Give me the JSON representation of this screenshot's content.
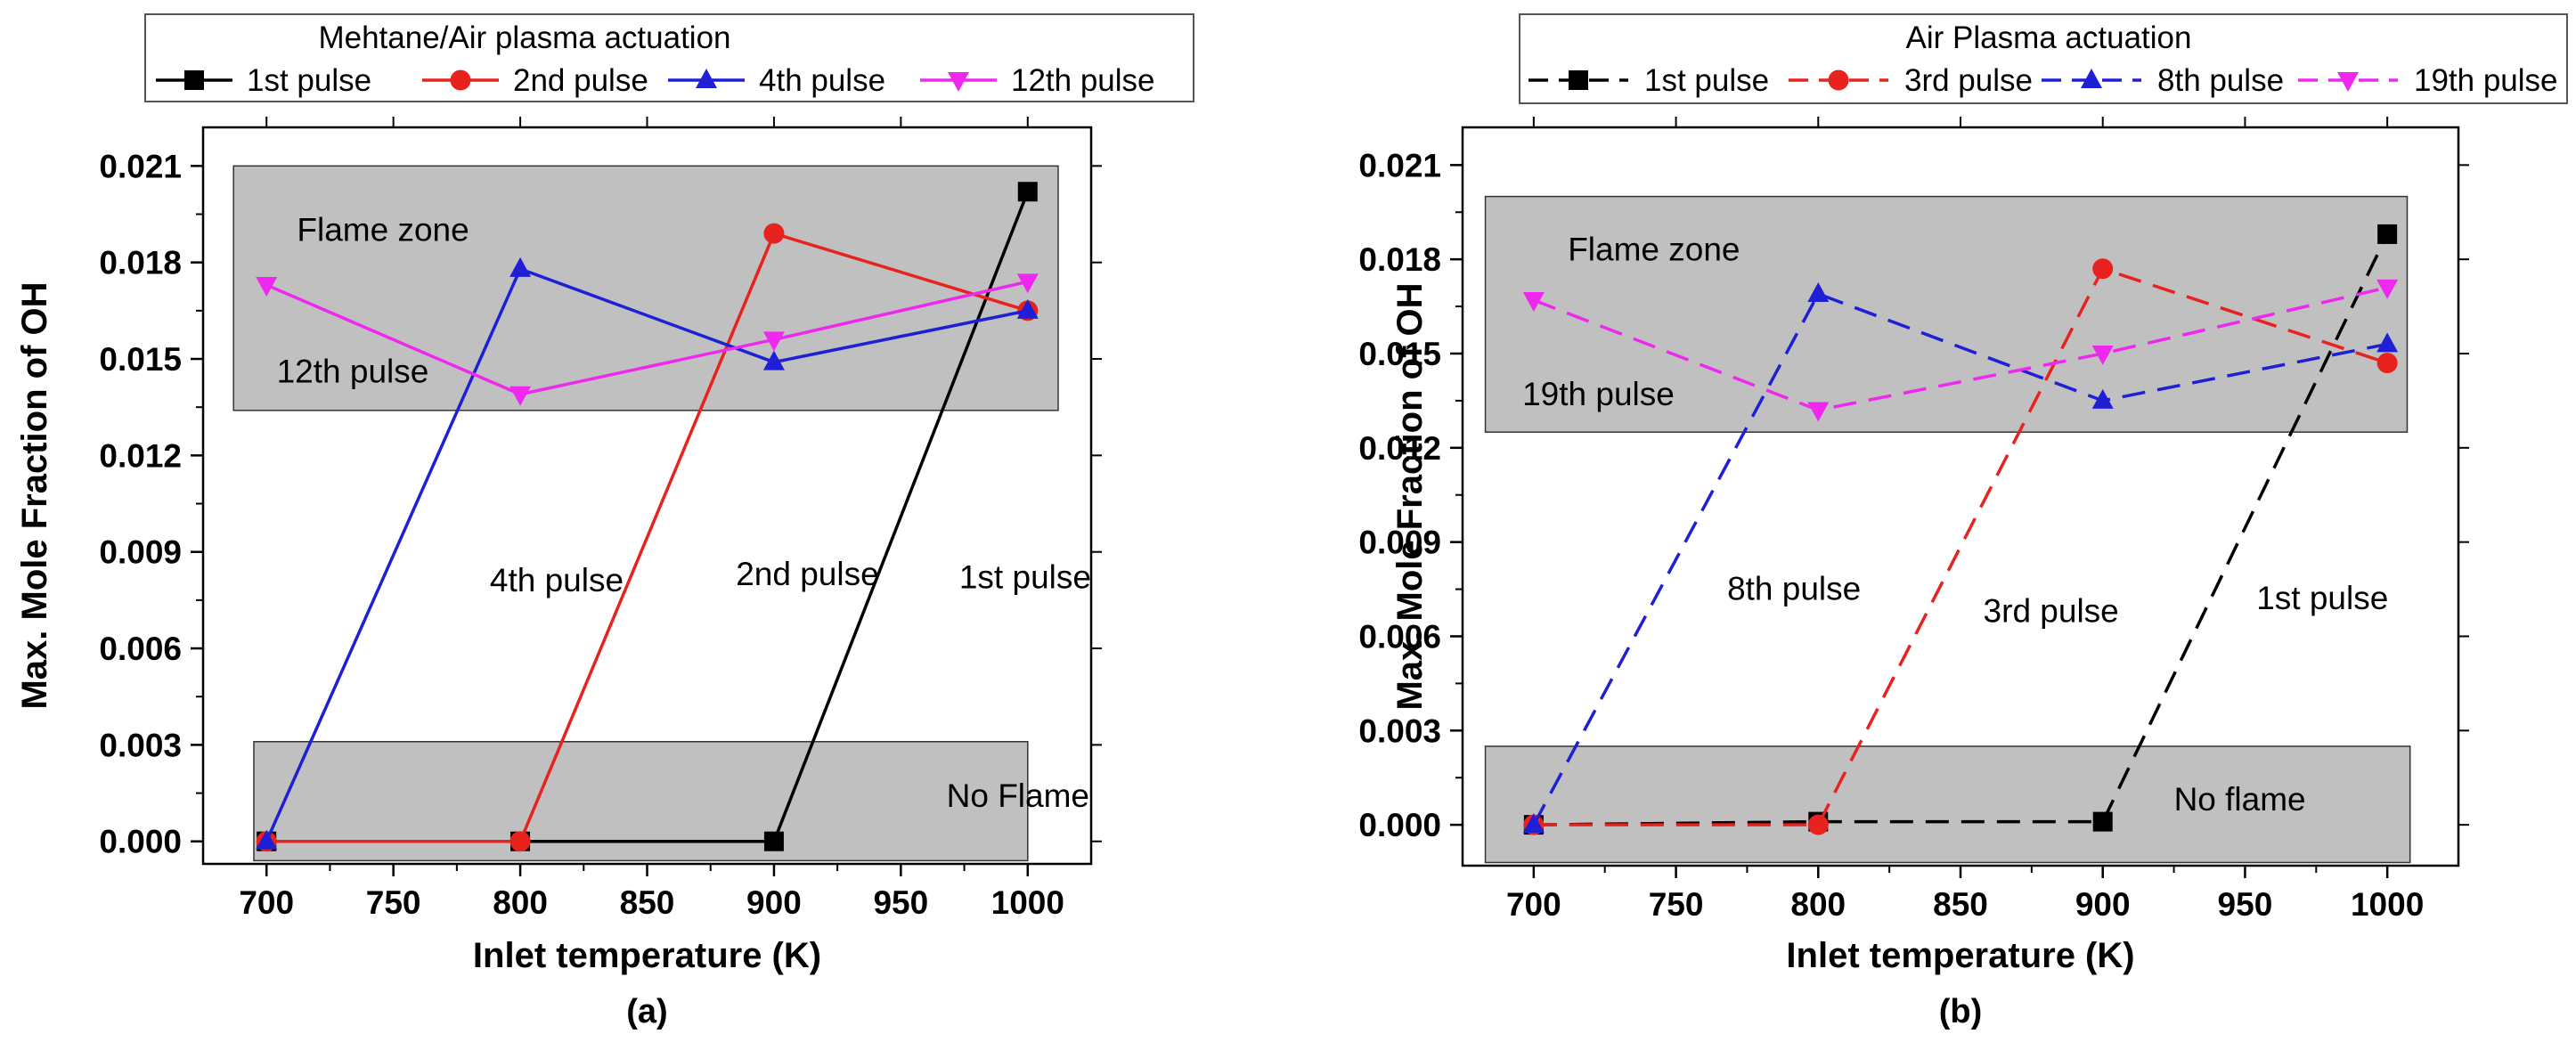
{
  "chart_data": [
    {
      "type": "line",
      "panel_label": "(a)",
      "legend_title": "Mehtane/Air plasma actuation",
      "xlabel": "Inlet temperature (K)",
      "ylabel": "Max. Mole Fraction of OH",
      "xlim": [
        675,
        1025
      ],
      "ylim": [
        -0.0007,
        0.0222
      ],
      "x_ticks": [
        700,
        750,
        800,
        850,
        900,
        950,
        1000
      ],
      "y_ticks": [
        0.0,
        0.003,
        0.006,
        0.009,
        0.012,
        0.015,
        0.018,
        0.021
      ],
      "x_tick_labels": [
        "700",
        "750",
        "800",
        "850",
        "900",
        "950",
        "1000"
      ],
      "y_tick_labels": [
        "0.000",
        "0.003",
        "0.006",
        "0.009",
        "0.012",
        "0.015",
        "0.018",
        "0.021"
      ],
      "line_style": "solid",
      "x": [
        700,
        800,
        900,
        1000
      ],
      "series": [
        {
          "name": "1st pulse",
          "color": "#000000",
          "marker": "square",
          "values": [
            0.0,
            0.0,
            0.0,
            0.0202
          ]
        },
        {
          "name": "2nd pulse",
          "color": "#e8221e",
          "marker": "circle",
          "values": [
            0.0,
            0.0,
            0.0189,
            0.0165
          ]
        },
        {
          "name": "4th pulse",
          "color": "#1f1fd6",
          "marker": "triangle-up",
          "values": [
            0.0,
            0.0178,
            0.0149,
            0.0165
          ]
        },
        {
          "name": "12th pulse",
          "color": "#ee28ee",
          "marker": "triangle-down",
          "values": [
            0.0173,
            0.0139,
            0.0156,
            0.0174
          ]
        }
      ],
      "zones": [
        {
          "label": "Flame zone",
          "x_range": [
            687,
            1012
          ],
          "y_range": [
            0.0134,
            0.021
          ],
          "label_at": [
            712,
            0.019
          ]
        },
        {
          "label": "No Flame",
          "x_range": [
            695,
            1000
          ],
          "y_range": [
            -0.0006,
            0.0031
          ],
          "label_at": [
            968,
            0.0014
          ]
        }
      ],
      "annotations": [
        {
          "text": "12th pulse",
          "at": [
            704,
            0.0146
          ]
        },
        {
          "text": "4th pulse",
          "at": [
            788,
            0.0081
          ]
        },
        {
          "text": "2nd pulse",
          "at": [
            885,
            0.0083
          ]
        },
        {
          "text": "1st pulse",
          "at": [
            973,
            0.0082
          ]
        }
      ]
    },
    {
      "type": "line",
      "panel_label": "(b)",
      "legend_title": "Air Plasma actuation",
      "xlabel": "Inlet temperature (K)",
      "ylabel": "Max. Mole Fraction of OH",
      "xlim": [
        675,
        1025
      ],
      "ylim": [
        -0.0013,
        0.0222
      ],
      "x_ticks": [
        700,
        750,
        800,
        850,
        900,
        950,
        1000
      ],
      "y_ticks": [
        0.0,
        0.003,
        0.006,
        0.009,
        0.012,
        0.015,
        0.018,
        0.021
      ],
      "x_tick_labels": [
        "700",
        "750",
        "800",
        "850",
        "900",
        "950",
        "1000"
      ],
      "y_tick_labels": [
        "0.000",
        "0.003",
        "0.006",
        "0.009",
        "0.012",
        "0.015",
        "0.018",
        "0.021"
      ],
      "line_style": "dashed",
      "x": [
        700,
        800,
        900,
        1000
      ],
      "series": [
        {
          "name": "1st pulse",
          "color": "#000000",
          "marker": "square",
          "values": [
            0.0,
            0.0001,
            0.0001,
            0.0188
          ]
        },
        {
          "name": "3rd pulse",
          "color": "#e8221e",
          "marker": "circle",
          "values": [
            0.0,
            0.0,
            0.0177,
            0.0147
          ]
        },
        {
          "name": "8th pulse",
          "color": "#1f1fd6",
          "marker": "triangle-up",
          "values": [
            0.0,
            0.0169,
            0.0135,
            0.0153
          ]
        },
        {
          "name": "19th pulse",
          "color": "#ee28ee",
          "marker": "triangle-down",
          "values": [
            0.0167,
            0.0132,
            0.015,
            0.0171
          ]
        }
      ],
      "zones": [
        {
          "label": "Flame zone",
          "x_range": [
            683,
            1007
          ],
          "y_range": [
            0.0125,
            0.02
          ],
          "label_at": [
            712,
            0.0183
          ]
        },
        {
          "label": "No flame",
          "x_range": [
            683,
            1008
          ],
          "y_range": [
            -0.0012,
            0.0025
          ],
          "label_at": [
            925,
            0.0008
          ]
        }
      ],
      "annotations": [
        {
          "text": "19th pulse",
          "at": [
            696,
            0.0137
          ]
        },
        {
          "text": "8th pulse",
          "at": [
            768,
            0.0075
          ]
        },
        {
          "text": "3rd pulse",
          "at": [
            858,
            0.0068
          ]
        },
        {
          "text": "1st pulse",
          "at": [
            954,
            0.0072
          ]
        }
      ]
    }
  ]
}
